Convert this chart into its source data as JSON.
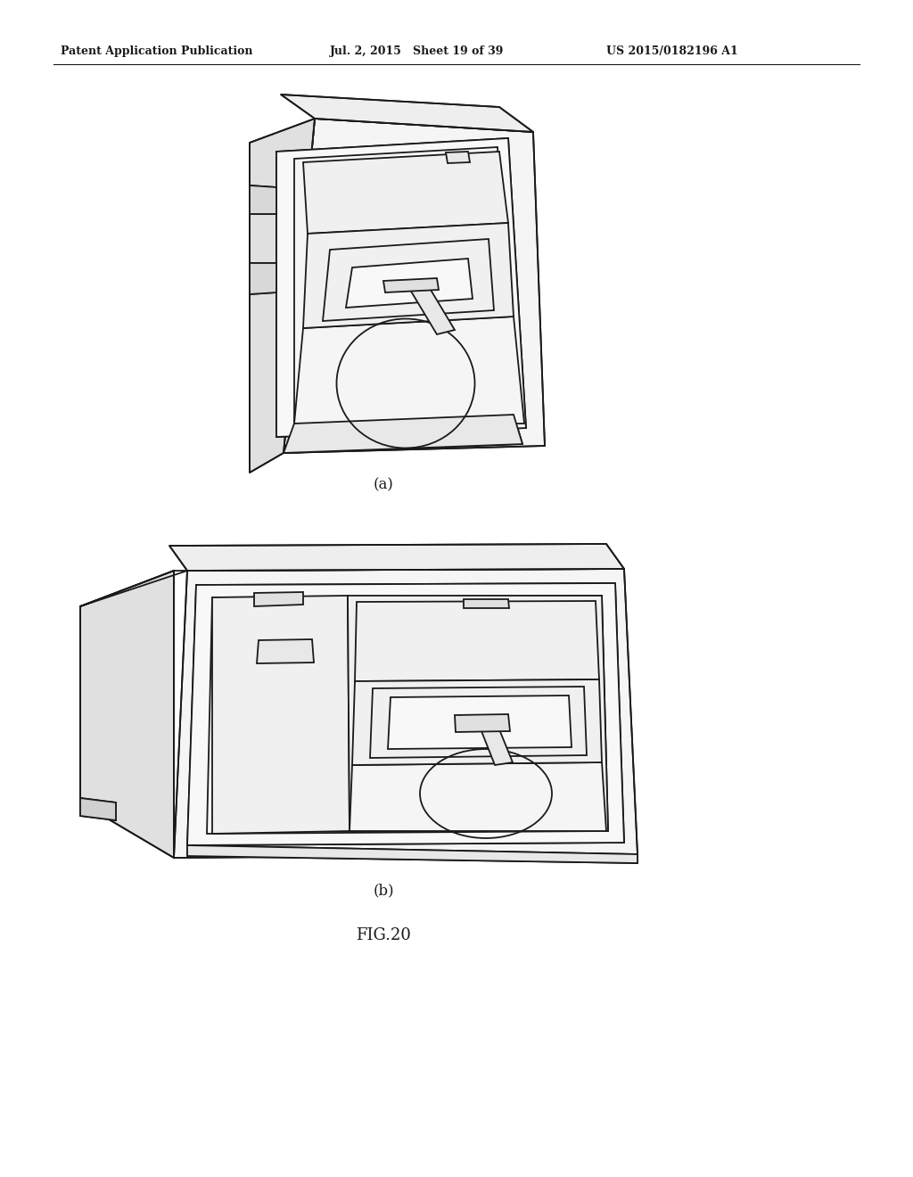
{
  "background_color": "#ffffff",
  "header_text_left": "Patent Application Publication",
  "header_text_center": "Jul. 2, 2015   Sheet 19 of 39",
  "header_text_right": "US 2015/0182196 A1",
  "label_a": "(a)",
  "label_b": "(b)",
  "fig_label": "FIG.20",
  "line_color": "#1a1a1a",
  "line_width": 1.3
}
